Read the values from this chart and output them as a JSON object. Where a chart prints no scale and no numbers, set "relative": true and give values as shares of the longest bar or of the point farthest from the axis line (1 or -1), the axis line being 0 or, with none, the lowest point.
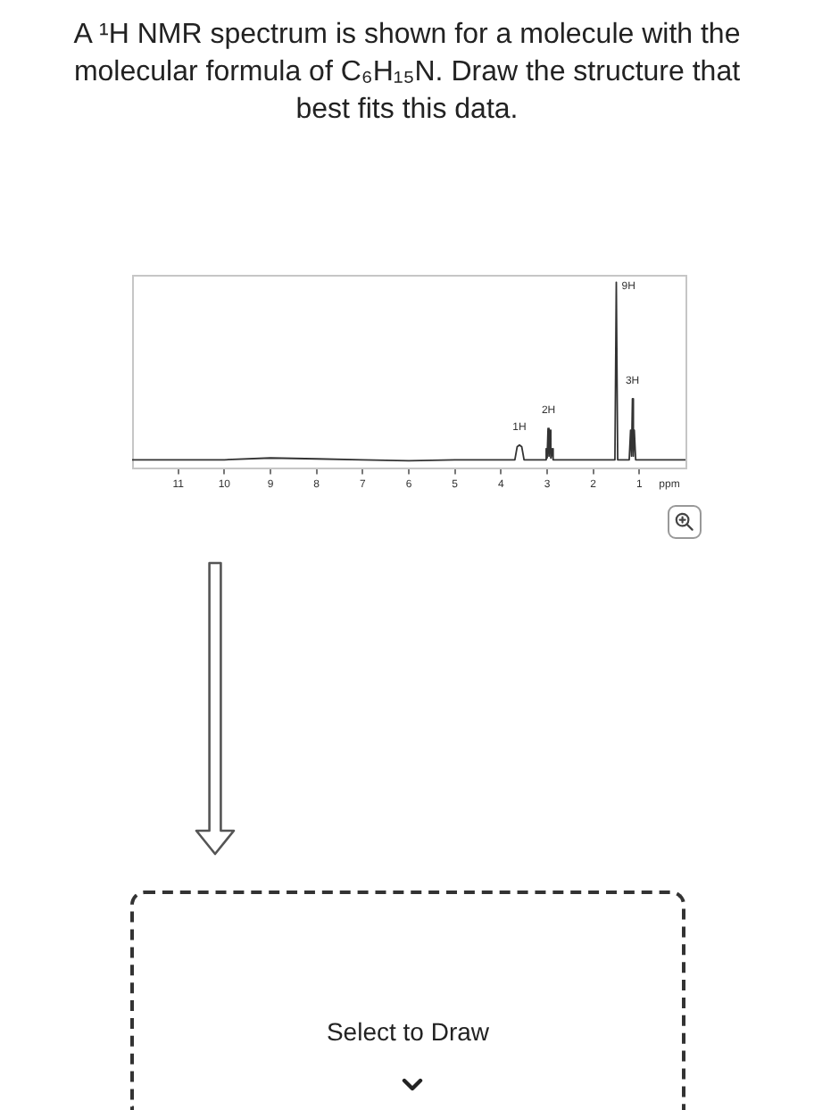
{
  "chart_data": {
    "type": "line",
    "title": "A ¹H NMR spectrum is shown for a molecule with the molecular formula of C₆H₁₅N. Draw the structure that best fits this data.",
    "xlabel": "ppm",
    "relative": true,
    "color": "#333333",
    "marker": "none",
    "x": [
      12,
      10,
      9,
      8,
      7,
      6,
      5,
      4,
      3.7,
      3.65,
      3.6,
      3.55,
      3.5,
      3.05,
      3.02,
      3.0,
      2.98,
      2.96,
      2.94,
      2.92,
      2.9,
      2.87,
      2.5,
      1.7,
      1.53,
      1.5,
      1.47,
      1.22,
      1.19,
      1.17,
      1.15,
      1.13,
      1.11,
      1.08,
      0.5,
      0
    ],
    "values": [
      0.04,
      0.04,
      0.05,
      0.045,
      0.04,
      0.035,
      0.04,
      0.04,
      0.04,
      0.11,
      0.12,
      0.11,
      0.04,
      0.04,
      0.1,
      0.05,
      0.21,
      0.06,
      0.2,
      0.05,
      0.1,
      0.04,
      0.04,
      0.04,
      0.04,
      1,
      0.04,
      0.04,
      0.2,
      0.06,
      0.37,
      0.06,
      0.2,
      0.04,
      0.04,
      0.04
    ],
    "xlim": [
      12,
      0
    ],
    "xticks": [
      1,
      2,
      3,
      4,
      5,
      6,
      7,
      8,
      9,
      10,
      11
    ],
    "annotations": [
      {
        "text": "1H",
        "x": 3.6,
        "y": 0.12
      },
      {
        "text": "2H",
        "x": 2.97,
        "y": 0.21
      },
      {
        "text": "9H",
        "x": 1.5,
        "y": 1
      },
      {
        "text": "3H",
        "x": 1.15,
        "y": 0.37
      },
      "Select to Draw"
    ]
  }
}
